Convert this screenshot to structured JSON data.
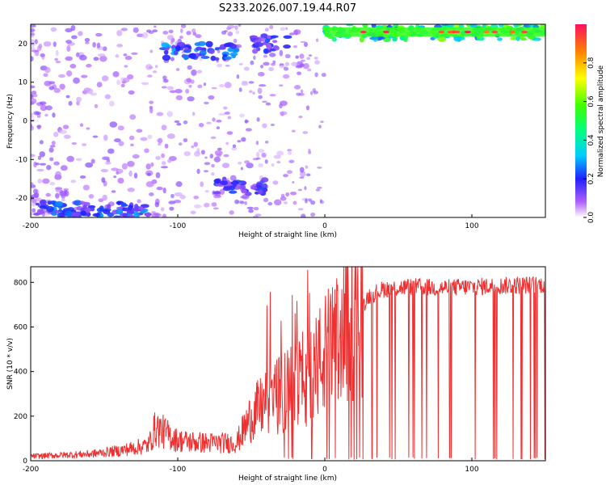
{
  "title": "S233.2026.007.19.44.R07",
  "chart_data": [
    {
      "type": "heatmap",
      "xlabel": "Height of straight line (km)",
      "ylabel": "Frequency (Hz)",
      "xlim": [
        -200,
        150
      ],
      "ylim": [
        -25,
        25
      ],
      "x_ticks": [
        -200,
        -100,
        0,
        100
      ],
      "y_ticks": [
        20,
        10,
        0,
        -10,
        -20
      ],
      "colorbar": {
        "label": "Normalized spectral amplitude",
        "range": [
          0,
          1
        ],
        "ticks": [
          0.0,
          0.2,
          0.4,
          0.6,
          0.8
        ]
      },
      "features": [
        {
          "x_range": [
            -200,
            -120
          ],
          "frequency": -23,
          "amplitude": 0.25
        },
        {
          "x_range": [
            -110,
            -60
          ],
          "frequency": 18,
          "amplitude": 0.25
        },
        {
          "x_range": [
            -75,
            -40
          ],
          "frequency": -17,
          "amplitude": 0.2
        },
        {
          "x_range": [
            -50,
            -25
          ],
          "frequency": 20,
          "amplitude": 0.2
        },
        {
          "x_range": [
            0,
            150
          ],
          "frequency": 23,
          "amplitude": 0.55
        }
      ]
    },
    {
      "type": "line",
      "xlabel": "Height of straight line (km)",
      "ylabel": "SNR (10 * v/v)",
      "xlim": [
        -200,
        150
      ],
      "ylim": [
        0,
        870
      ],
      "x_ticks": [
        -200,
        -100,
        0,
        100
      ],
      "y_ticks": [
        0,
        200,
        400,
        600,
        800
      ],
      "line_color": "#f03030",
      "x": [
        -200,
        -180,
        -160,
        -140,
        -120,
        -115,
        -100,
        -80,
        -60,
        -50,
        -40,
        -30,
        -20,
        -10,
        0,
        10,
        20,
        30,
        40,
        60,
        80,
        100,
        120,
        150
      ],
      "y": [
        20,
        25,
        30,
        45,
        70,
        150,
        90,
        80,
        80,
        200,
        260,
        300,
        340,
        390,
        470,
        560,
        640,
        740,
        770,
        780,
        775,
        780,
        785,
        790
      ]
    }
  ]
}
